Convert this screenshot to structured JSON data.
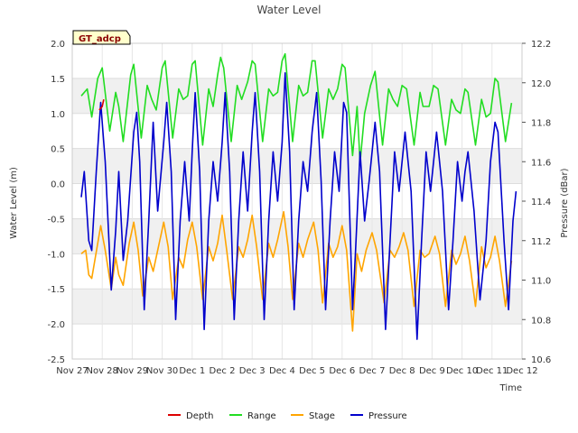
{
  "chart_data": {
    "type": "line",
    "title": "Water Level",
    "annotation": "GT_adcp",
    "xlabel": "Time",
    "ylabel_left": "Water Level (m)",
    "ylabel_right": "Pressure (dBar)",
    "x_range_days": [
      0,
      15
    ],
    "x_ticks": [
      {
        "day": 0,
        "label": "Nov 27"
      },
      {
        "day": 1,
        "label": "Nov 28"
      },
      {
        "day": 2,
        "label": "Nov 29"
      },
      {
        "day": 3,
        "label": "Nov 30"
      },
      {
        "day": 4,
        "label": "Dec 1"
      },
      {
        "day": 5,
        "label": "Dec 2"
      },
      {
        "day": 6,
        "label": "Dec 3"
      },
      {
        "day": 7,
        "label": "Dec 4"
      },
      {
        "day": 8,
        "label": "Dec 5"
      },
      {
        "day": 9,
        "label": "Dec 6"
      },
      {
        "day": 10,
        "label": "Dec 7"
      },
      {
        "day": 11,
        "label": "Dec 8"
      },
      {
        "day": 12,
        "label": "Dec 9"
      },
      {
        "day": 13,
        "label": "Dec 10"
      },
      {
        "day": 14,
        "label": "Dec 11"
      },
      {
        "day": 15,
        "label": "Dec 12"
      }
    ],
    "ylim_left": [
      -2.5,
      2.0
    ],
    "y_ticks_left": [
      "2.0",
      "1.5",
      "1.0",
      "0.5",
      "0.0",
      "-0.5",
      "-1.0",
      "-1.5",
      "-2.0",
      "-2.5"
    ],
    "ylim_right": [
      10.6,
      12.2
    ],
    "y_ticks_right": [
      "12.2",
      "12.0",
      "11.8",
      "11.6",
      "11.4",
      "11.2",
      "11.0",
      "10.8",
      "10.6"
    ],
    "legend": [
      {
        "name": "Depth",
        "color": "#dd0000"
      },
      {
        "name": "Range",
        "color": "#22dd22"
      },
      {
        "name": "Stage",
        "color": "#ffa500"
      },
      {
        "name": "Pressure",
        "color": "#0000cc"
      }
    ],
    "series": [
      {
        "name": "Range",
        "axis": "left",
        "color": "#22dd22",
        "points": [
          [
            0.3,
            1.25
          ],
          [
            0.5,
            1.35
          ],
          [
            0.65,
            0.95
          ],
          [
            0.85,
            1.5
          ],
          [
            1.0,
            1.65
          ],
          [
            1.25,
            0.75
          ],
          [
            1.45,
            1.3
          ],
          [
            1.55,
            1.1
          ],
          [
            1.7,
            0.6
          ],
          [
            1.95,
            1.55
          ],
          [
            2.05,
            1.7
          ],
          [
            2.3,
            0.65
          ],
          [
            2.5,
            1.4
          ],
          [
            2.65,
            1.2
          ],
          [
            2.8,
            1.05
          ],
          [
            3.0,
            1.65
          ],
          [
            3.1,
            1.75
          ],
          [
            3.35,
            0.65
          ],
          [
            3.55,
            1.35
          ],
          [
            3.7,
            1.2
          ],
          [
            3.85,
            1.25
          ],
          [
            4.0,
            1.7
          ],
          [
            4.1,
            1.75
          ],
          [
            4.35,
            0.55
          ],
          [
            4.55,
            1.35
          ],
          [
            4.7,
            1.1
          ],
          [
            4.85,
            1.55
          ],
          [
            4.95,
            1.8
          ],
          [
            5.05,
            1.65
          ],
          [
            5.3,
            0.6
          ],
          [
            5.5,
            1.4
          ],
          [
            5.65,
            1.2
          ],
          [
            5.85,
            1.45
          ],
          [
            6.0,
            1.75
          ],
          [
            6.1,
            1.7
          ],
          [
            6.35,
            0.6
          ],
          [
            6.55,
            1.35
          ],
          [
            6.7,
            1.25
          ],
          [
            6.85,
            1.3
          ],
          [
            7.0,
            1.75
          ],
          [
            7.1,
            1.85
          ],
          [
            7.35,
            0.6
          ],
          [
            7.55,
            1.4
          ],
          [
            7.7,
            1.25
          ],
          [
            7.85,
            1.3
          ],
          [
            8.0,
            1.75
          ],
          [
            8.1,
            1.75
          ],
          [
            8.35,
            0.65
          ],
          [
            8.55,
            1.35
          ],
          [
            8.7,
            1.2
          ],
          [
            8.85,
            1.35
          ],
          [
            9.0,
            1.7
          ],
          [
            9.1,
            1.65
          ],
          [
            9.35,
            0.4
          ],
          [
            9.5,
            1.1
          ],
          [
            9.6,
            0.3
          ],
          [
            9.75,
            1.0
          ],
          [
            9.95,
            1.4
          ],
          [
            10.1,
            1.6
          ],
          [
            10.35,
            0.55
          ],
          [
            10.55,
            1.35
          ],
          [
            10.7,
            1.2
          ],
          [
            10.85,
            1.1
          ],
          [
            11.0,
            1.4
          ],
          [
            11.15,
            1.35
          ],
          [
            11.4,
            0.55
          ],
          [
            11.6,
            1.3
          ],
          [
            11.7,
            1.1
          ],
          [
            11.9,
            1.1
          ],
          [
            12.05,
            1.4
          ],
          [
            12.2,
            1.35
          ],
          [
            12.45,
            0.55
          ],
          [
            12.65,
            1.2
          ],
          [
            12.8,
            1.05
          ],
          [
            12.95,
            1.0
          ],
          [
            13.1,
            1.35
          ],
          [
            13.2,
            1.3
          ],
          [
            13.45,
            0.55
          ],
          [
            13.65,
            1.2
          ],
          [
            13.8,
            0.95
          ],
          [
            13.95,
            1.0
          ],
          [
            14.1,
            1.5
          ],
          [
            14.2,
            1.45
          ],
          [
            14.45,
            0.6
          ],
          [
            14.65,
            1.15
          ]
        ]
      },
      {
        "name": "Stage",
        "axis": "left",
        "color": "#ffa500",
        "points": [
          [
            0.3,
            -1.0
          ],
          [
            0.45,
            -0.95
          ],
          [
            0.55,
            -1.3
          ],
          [
            0.65,
            -1.35
          ],
          [
            0.85,
            -0.85
          ],
          [
            0.95,
            -0.6
          ],
          [
            1.1,
            -0.95
          ],
          [
            1.3,
            -1.5
          ],
          [
            1.45,
            -1.05
          ],
          [
            1.55,
            -1.3
          ],
          [
            1.7,
            -1.45
          ],
          [
            1.9,
            -0.85
          ],
          [
            2.05,
            -0.55
          ],
          [
            2.2,
            -0.95
          ],
          [
            2.35,
            -1.6
          ],
          [
            2.55,
            -1.05
          ],
          [
            2.7,
            -1.25
          ],
          [
            2.85,
            -0.95
          ],
          [
            3.05,
            -0.55
          ],
          [
            3.2,
            -0.9
          ],
          [
            3.35,
            -1.65
          ],
          [
            3.55,
            -1.05
          ],
          [
            3.7,
            -1.2
          ],
          [
            3.85,
            -0.8
          ],
          [
            4.0,
            -0.55
          ],
          [
            4.15,
            -0.9
          ],
          [
            4.35,
            -1.65
          ],
          [
            4.55,
            -0.9
          ],
          [
            4.7,
            -1.1
          ],
          [
            4.85,
            -0.85
          ],
          [
            5.0,
            -0.45
          ],
          [
            5.15,
            -0.95
          ],
          [
            5.35,
            -1.65
          ],
          [
            5.55,
            -0.9
          ],
          [
            5.7,
            -1.05
          ],
          [
            5.85,
            -0.8
          ],
          [
            6.0,
            -0.45
          ],
          [
            6.15,
            -0.9
          ],
          [
            6.35,
            -1.65
          ],
          [
            6.55,
            -0.85
          ],
          [
            6.7,
            -1.05
          ],
          [
            6.85,
            -0.8
          ],
          [
            7.05,
            -0.4
          ],
          [
            7.2,
            -0.9
          ],
          [
            7.35,
            -1.65
          ],
          [
            7.55,
            -0.85
          ],
          [
            7.7,
            -1.05
          ],
          [
            7.85,
            -0.8
          ],
          [
            8.05,
            -0.55
          ],
          [
            8.2,
            -0.95
          ],
          [
            8.35,
            -1.7
          ],
          [
            8.55,
            -0.85
          ],
          [
            8.7,
            -1.05
          ],
          [
            8.85,
            -0.9
          ],
          [
            9.0,
            -0.6
          ],
          [
            9.15,
            -0.95
          ],
          [
            9.35,
            -2.1
          ],
          [
            9.5,
            -1.0
          ],
          [
            9.65,
            -1.25
          ],
          [
            9.8,
            -0.95
          ],
          [
            10.0,
            -0.7
          ],
          [
            10.15,
            -0.95
          ],
          [
            10.4,
            -1.7
          ],
          [
            10.6,
            -0.95
          ],
          [
            10.75,
            -1.05
          ],
          [
            10.9,
            -0.9
          ],
          [
            11.05,
            -0.7
          ],
          [
            11.2,
            -0.95
          ],
          [
            11.4,
            -1.75
          ],
          [
            11.6,
            -0.95
          ],
          [
            11.75,
            -1.05
          ],
          [
            11.9,
            -1.0
          ],
          [
            12.1,
            -0.75
          ],
          [
            12.25,
            -1.0
          ],
          [
            12.45,
            -1.75
          ],
          [
            12.65,
            -0.95
          ],
          [
            12.8,
            -1.15
          ],
          [
            12.95,
            -1.0
          ],
          [
            13.1,
            -0.75
          ],
          [
            13.25,
            -1.1
          ],
          [
            13.45,
            -1.75
          ],
          [
            13.65,
            -0.9
          ],
          [
            13.8,
            -1.2
          ],
          [
            13.95,
            -1.05
          ],
          [
            14.1,
            -0.75
          ],
          [
            14.25,
            -1.1
          ],
          [
            14.45,
            -1.75
          ],
          [
            14.65,
            -1.1
          ]
        ]
      },
      {
        "name": "Pressure",
        "axis": "right",
        "color": "#0000cc",
        "points": [
          [
            0.3,
            11.42
          ],
          [
            0.4,
            11.55
          ],
          [
            0.55,
            11.2
          ],
          [
            0.65,
            11.15
          ],
          [
            0.8,
            11.55
          ],
          [
            0.95,
            11.9
          ],
          [
            1.1,
            11.6
          ],
          [
            1.3,
            10.95
          ],
          [
            1.45,
            11.25
          ],
          [
            1.55,
            11.55
          ],
          [
            1.7,
            11.1
          ],
          [
            1.85,
            11.3
          ],
          [
            2.05,
            11.75
          ],
          [
            2.15,
            11.85
          ],
          [
            2.25,
            11.6
          ],
          [
            2.4,
            10.85
          ],
          [
            2.55,
            11.3
          ],
          [
            2.7,
            11.8
          ],
          [
            2.85,
            11.35
          ],
          [
            3.05,
            11.7
          ],
          [
            3.15,
            11.9
          ],
          [
            3.3,
            11.55
          ],
          [
            3.45,
            10.8
          ],
          [
            3.6,
            11.3
          ],
          [
            3.75,
            11.6
          ],
          [
            3.9,
            11.3
          ],
          [
            4.0,
            11.65
          ],
          [
            4.1,
            11.95
          ],
          [
            4.25,
            11.55
          ],
          [
            4.4,
            10.75
          ],
          [
            4.55,
            11.3
          ],
          [
            4.7,
            11.6
          ],
          [
            4.85,
            11.4
          ],
          [
            5.0,
            11.7
          ],
          [
            5.1,
            11.95
          ],
          [
            5.25,
            11.55
          ],
          [
            5.4,
            10.8
          ],
          [
            5.55,
            11.3
          ],
          [
            5.7,
            11.65
          ],
          [
            5.85,
            11.35
          ],
          [
            6.0,
            11.75
          ],
          [
            6.1,
            11.95
          ],
          [
            6.25,
            11.55
          ],
          [
            6.4,
            10.8
          ],
          [
            6.55,
            11.3
          ],
          [
            6.7,
            11.65
          ],
          [
            6.85,
            11.4
          ],
          [
            7.0,
            11.7
          ],
          [
            7.1,
            12.05
          ],
          [
            7.25,
            11.65
          ],
          [
            7.4,
            10.85
          ],
          [
            7.55,
            11.3
          ],
          [
            7.7,
            11.6
          ],
          [
            7.85,
            11.45
          ],
          [
            8.0,
            11.75
          ],
          [
            8.15,
            11.95
          ],
          [
            8.3,
            11.5
          ],
          [
            8.45,
            10.85
          ],
          [
            8.6,
            11.3
          ],
          [
            8.75,
            11.65
          ],
          [
            8.9,
            11.45
          ],
          [
            9.05,
            11.9
          ],
          [
            9.15,
            11.85
          ],
          [
            9.35,
            10.85
          ],
          [
            9.45,
            11.15
          ],
          [
            9.6,
            11.65
          ],
          [
            9.75,
            11.3
          ],
          [
            9.9,
            11.5
          ],
          [
            10.1,
            11.8
          ],
          [
            10.25,
            11.55
          ],
          [
            10.45,
            10.75
          ],
          [
            10.6,
            11.2
          ],
          [
            10.75,
            11.65
          ],
          [
            10.9,
            11.45
          ],
          [
            11.0,
            11.6
          ],
          [
            11.1,
            11.75
          ],
          [
            11.3,
            11.45
          ],
          [
            11.5,
            10.7
          ],
          [
            11.65,
            11.2
          ],
          [
            11.8,
            11.65
          ],
          [
            11.95,
            11.45
          ],
          [
            12.05,
            11.6
          ],
          [
            12.15,
            11.75
          ],
          [
            12.35,
            11.45
          ],
          [
            12.55,
            10.85
          ],
          [
            12.7,
            11.2
          ],
          [
            12.85,
            11.6
          ],
          [
            13.0,
            11.4
          ],
          [
            13.1,
            11.55
          ],
          [
            13.2,
            11.65
          ],
          [
            13.4,
            11.35
          ],
          [
            13.6,
            10.9
          ],
          [
            13.8,
            11.2
          ],
          [
            13.95,
            11.6
          ],
          [
            14.1,
            11.8
          ],
          [
            14.2,
            11.75
          ],
          [
            14.4,
            11.2
          ],
          [
            14.55,
            10.85
          ],
          [
            14.7,
            11.3
          ],
          [
            14.8,
            11.45
          ]
        ]
      },
      {
        "name": "Depth",
        "axis": "left",
        "color": "#dd0000",
        "points": [
          [
            0.9,
            1.05
          ],
          [
            1.0,
            1.1
          ],
          [
            1.05,
            1.2
          ]
        ]
      }
    ]
  }
}
